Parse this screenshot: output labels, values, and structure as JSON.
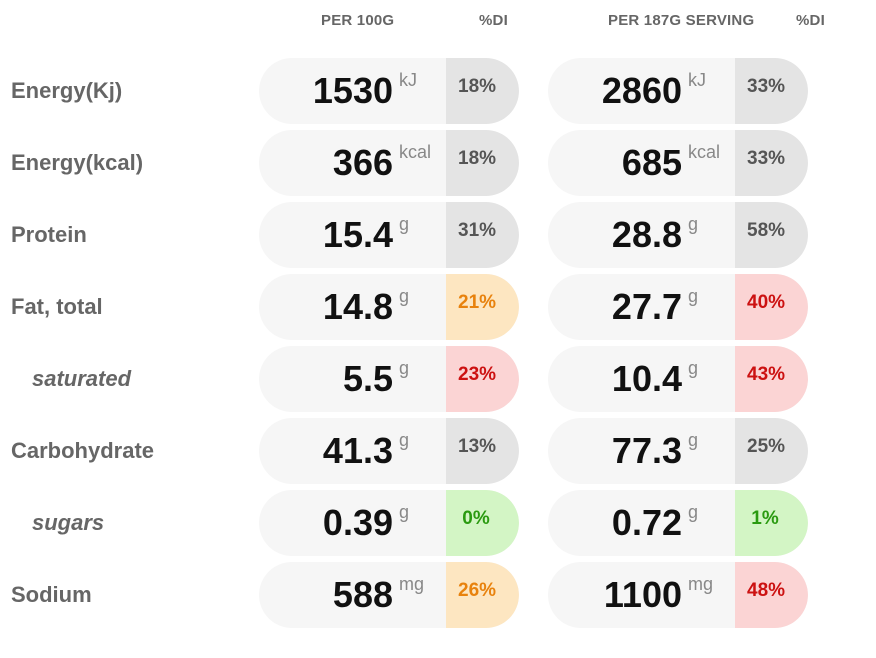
{
  "headers": {
    "per100": "PER 100G",
    "di1": "%DI",
    "perServing": "PER 187G SERVING",
    "di2": "%DI"
  },
  "rows": [
    {
      "label": "Energy(Kj)",
      "sub": false,
      "a_val": "1530",
      "a_unit": "kJ",
      "a_di": "18%",
      "a_color": "gray",
      "b_val": "2860",
      "b_unit": "kJ",
      "b_di": "33%",
      "b_color": "gray"
    },
    {
      "label": "Energy(kcal)",
      "sub": false,
      "a_val": "366",
      "a_unit": "kcal",
      "a_di": "18%",
      "a_color": "gray",
      "b_val": "685",
      "b_unit": "kcal",
      "b_di": "33%",
      "b_color": "gray"
    },
    {
      "label": "Protein",
      "sub": false,
      "a_val": "15.4",
      "a_unit": "g",
      "a_di": "31%",
      "a_color": "gray",
      "b_val": "28.8",
      "b_unit": "g",
      "b_di": "58%",
      "b_color": "gray"
    },
    {
      "label": "Fat, total",
      "sub": false,
      "a_val": "14.8",
      "a_unit": "g",
      "a_di": "21%",
      "a_color": "orange",
      "b_val": "27.7",
      "b_unit": "g",
      "b_di": "40%",
      "b_color": "red"
    },
    {
      "label": "saturated",
      "sub": true,
      "a_val": "5.5",
      "a_unit": "g",
      "a_di": "23%",
      "a_color": "red",
      "b_val": "10.4",
      "b_unit": "g",
      "b_di": "43%",
      "b_color": "red"
    },
    {
      "label": "Carbohydrate",
      "sub": false,
      "a_val": "41.3",
      "a_unit": "g",
      "a_di": "13%",
      "a_color": "gray",
      "b_val": "77.3",
      "b_unit": "g",
      "b_di": "25%",
      "b_color": "gray"
    },
    {
      "label": "sugars",
      "sub": true,
      "a_val": "0.39",
      "a_unit": "g",
      "a_di": "0%",
      "a_color": "green",
      "b_val": "0.72",
      "b_unit": "g",
      "b_di": "1%",
      "b_color": "green"
    },
    {
      "label": "Sodium",
      "sub": false,
      "a_val": "588",
      "a_unit": "mg",
      "a_di": "26%",
      "a_color": "orange",
      "b_val": "1100",
      "b_unit": "mg",
      "b_di": "48%",
      "b_color": "red"
    }
  ]
}
